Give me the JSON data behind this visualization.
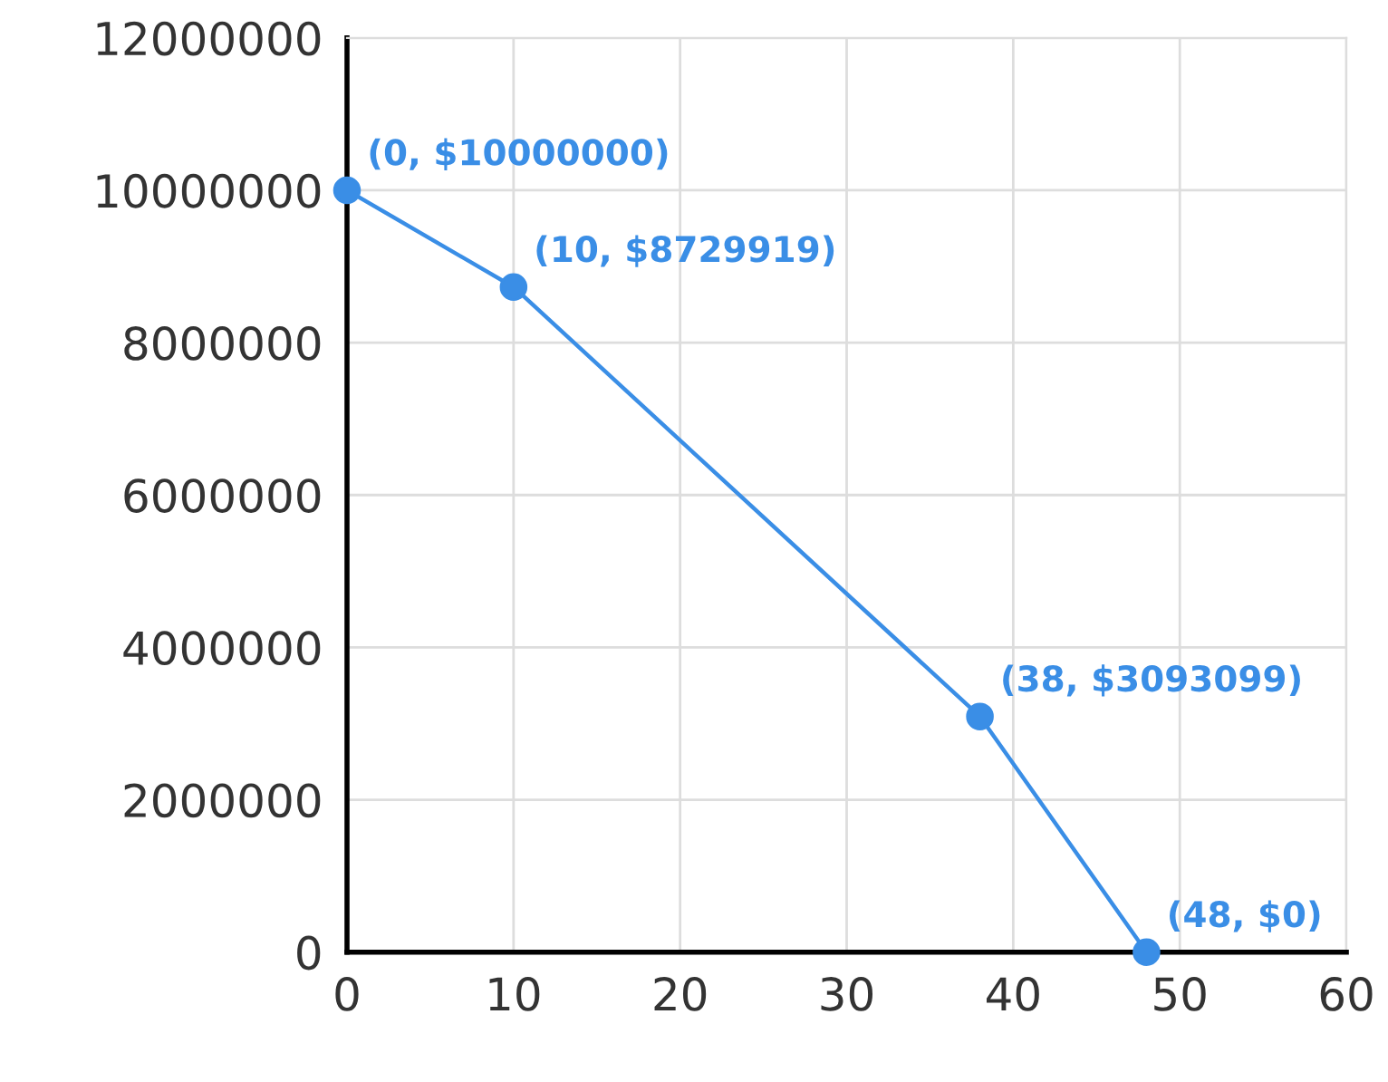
{
  "chart_data": {
    "type": "line",
    "x": [
      0,
      10,
      38,
      48
    ],
    "series": [
      {
        "color": "#3a8ee6",
        "values": [
          10000000,
          8729919,
          3093099,
          0
        ],
        "value_labels": [
          "(0, $10000000)",
          "(10, $8729919)",
          "(38, $3093099)",
          "(48, $0)"
        ]
      }
    ],
    "xlim": [
      0,
      60
    ],
    "xticks": [
      0,
      10,
      20,
      30,
      40,
      50,
      60
    ],
    "ylim": [
      0,
      12000000
    ],
    "yticks": [
      0,
      2000000,
      4000000,
      6000000,
      8000000,
      10000000,
      12000000
    ],
    "grid": true,
    "marker": "circle",
    "line_style": "solid"
  }
}
